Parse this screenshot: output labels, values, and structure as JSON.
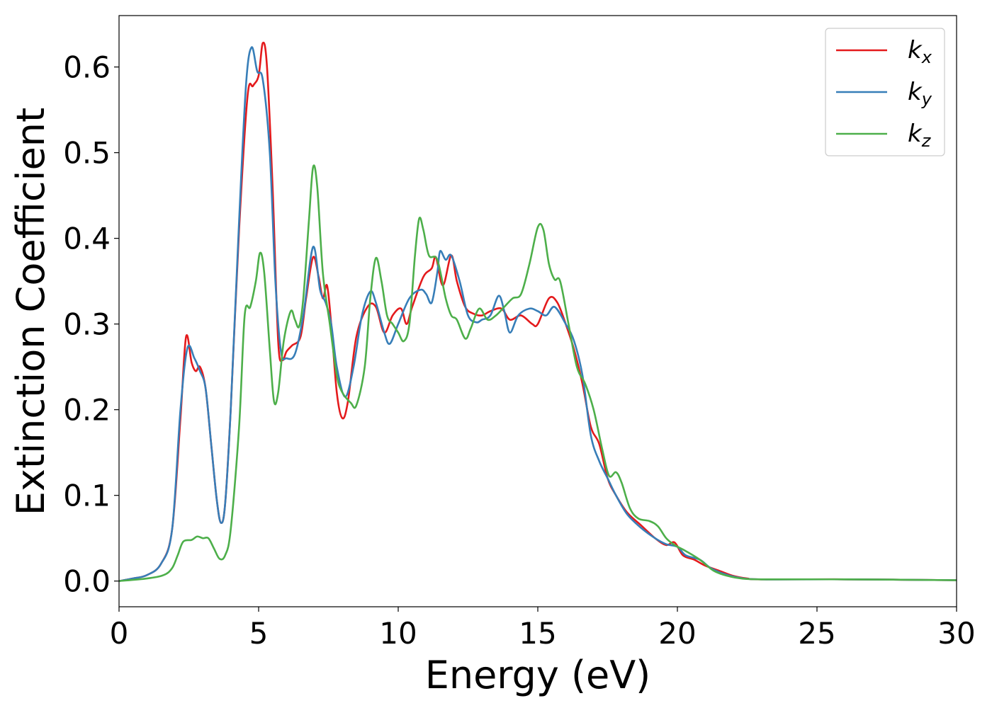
{
  "chart_data": {
    "type": "line",
    "xlabel": "Energy (eV)",
    "ylabel": "Extinction Coefficient",
    "xlim": [
      0,
      30
    ],
    "ylim": [
      -0.03,
      0.66
    ],
    "xticks": [
      0,
      5,
      10,
      15,
      20,
      25,
      30
    ],
    "xtick_labels": [
      "0",
      "5",
      "10",
      "15",
      "20",
      "25",
      "30"
    ],
    "yticks": [
      0.0,
      0.1,
      0.2,
      0.3,
      0.4,
      0.5,
      0.6
    ],
    "ytick_labels": [
      "0.0",
      "0.1",
      "0.2",
      "0.3",
      "0.4",
      "0.5",
      "0.6"
    ],
    "grid": false,
    "legend_position": "top-right",
    "series": [
      {
        "name": "kx",
        "legend_base": "k",
        "legend_sub": "x",
        "color": "#e41a1c",
        "points": [
          [
            0,
            0.0
          ],
          [
            0.5,
            0.003
          ],
          [
            1.0,
            0.007
          ],
          [
            1.5,
            0.02
          ],
          [
            1.9,
            0.06
          ],
          [
            2.2,
            0.19
          ],
          [
            2.4,
            0.285
          ],
          [
            2.6,
            0.255
          ],
          [
            2.75,
            0.245
          ],
          [
            2.9,
            0.25
          ],
          [
            3.1,
            0.225
          ],
          [
            3.3,
            0.16
          ],
          [
            3.5,
            0.095
          ],
          [
            3.65,
            0.068
          ],
          [
            3.8,
            0.09
          ],
          [
            4.0,
            0.2
          ],
          [
            4.3,
            0.41
          ],
          [
            4.6,
            0.565
          ],
          [
            4.8,
            0.578
          ],
          [
            5.0,
            0.59
          ],
          [
            5.15,
            0.628
          ],
          [
            5.3,
            0.6
          ],
          [
            5.5,
            0.46
          ],
          [
            5.7,
            0.28
          ],
          [
            5.85,
            0.258
          ],
          [
            6.0,
            0.268
          ],
          [
            6.2,
            0.275
          ],
          [
            6.5,
            0.285
          ],
          [
            6.7,
            0.33
          ],
          [
            6.95,
            0.378
          ],
          [
            7.15,
            0.355
          ],
          [
            7.3,
            0.33
          ],
          [
            7.45,
            0.345
          ],
          [
            7.6,
            0.3
          ],
          [
            7.8,
            0.22
          ],
          [
            8.0,
            0.19
          ],
          [
            8.2,
            0.21
          ],
          [
            8.5,
            0.285
          ],
          [
            8.9,
            0.32
          ],
          [
            9.2,
            0.32
          ],
          [
            9.5,
            0.29
          ],
          [
            9.8,
            0.31
          ],
          [
            10.1,
            0.318
          ],
          [
            10.3,
            0.3
          ],
          [
            10.5,
            0.32
          ],
          [
            10.9,
            0.355
          ],
          [
            11.2,
            0.365
          ],
          [
            11.35,
            0.378
          ],
          [
            11.6,
            0.345
          ],
          [
            11.9,
            0.38
          ],
          [
            12.1,
            0.35
          ],
          [
            12.4,
            0.32
          ],
          [
            12.7,
            0.312
          ],
          [
            13.0,
            0.31
          ],
          [
            13.3,
            0.315
          ],
          [
            13.7,
            0.318
          ],
          [
            14.0,
            0.305
          ],
          [
            14.4,
            0.31
          ],
          [
            14.8,
            0.3
          ],
          [
            15.0,
            0.3
          ],
          [
            15.4,
            0.33
          ],
          [
            15.7,
            0.325
          ],
          [
            16.0,
            0.3
          ],
          [
            16.3,
            0.27
          ],
          [
            16.6,
            0.23
          ],
          [
            16.9,
            0.18
          ],
          [
            17.2,
            0.16
          ],
          [
            17.5,
            0.12
          ],
          [
            17.8,
            0.1
          ],
          [
            18.2,
            0.08
          ],
          [
            18.7,
            0.065
          ],
          [
            19.2,
            0.05
          ],
          [
            19.6,
            0.042
          ],
          [
            19.9,
            0.045
          ],
          [
            20.2,
            0.03
          ],
          [
            20.6,
            0.025
          ],
          [
            21.0,
            0.018
          ],
          [
            21.5,
            0.012
          ],
          [
            22.0,
            0.006
          ],
          [
            22.5,
            0.003
          ],
          [
            23.0,
            0.002
          ],
          [
            26.0,
            0.002
          ],
          [
            30.0,
            0.001
          ]
        ]
      },
      {
        "name": "ky",
        "legend_base": "k",
        "legend_sub": "y",
        "color": "#377eb8",
        "points": [
          [
            0,
            0.0
          ],
          [
            0.5,
            0.003
          ],
          [
            1.0,
            0.007
          ],
          [
            1.5,
            0.02
          ],
          [
            1.9,
            0.06
          ],
          [
            2.2,
            0.2
          ],
          [
            2.45,
            0.272
          ],
          [
            2.7,
            0.26
          ],
          [
            2.9,
            0.245
          ],
          [
            3.1,
            0.225
          ],
          [
            3.3,
            0.16
          ],
          [
            3.5,
            0.095
          ],
          [
            3.65,
            0.068
          ],
          [
            3.8,
            0.09
          ],
          [
            4.0,
            0.2
          ],
          [
            4.3,
            0.42
          ],
          [
            4.55,
            0.58
          ],
          [
            4.75,
            0.623
          ],
          [
            4.95,
            0.595
          ],
          [
            5.15,
            0.585
          ],
          [
            5.4,
            0.5
          ],
          [
            5.6,
            0.35
          ],
          [
            5.8,
            0.268
          ],
          [
            6.0,
            0.26
          ],
          [
            6.3,
            0.265
          ],
          [
            6.6,
            0.31
          ],
          [
            6.95,
            0.39
          ],
          [
            7.2,
            0.34
          ],
          [
            7.4,
            0.325
          ],
          [
            7.6,
            0.3
          ],
          [
            7.8,
            0.25
          ],
          [
            8.1,
            0.215
          ],
          [
            8.4,
            0.25
          ],
          [
            8.7,
            0.31
          ],
          [
            9.0,
            0.338
          ],
          [
            9.2,
            0.325
          ],
          [
            9.5,
            0.29
          ],
          [
            9.7,
            0.277
          ],
          [
            10.0,
            0.3
          ],
          [
            10.4,
            0.33
          ],
          [
            10.8,
            0.34
          ],
          [
            11.0,
            0.335
          ],
          [
            11.2,
            0.325
          ],
          [
            11.4,
            0.36
          ],
          [
            11.5,
            0.385
          ],
          [
            11.7,
            0.375
          ],
          [
            11.9,
            0.38
          ],
          [
            12.2,
            0.35
          ],
          [
            12.5,
            0.31
          ],
          [
            12.8,
            0.302
          ],
          [
            13.0,
            0.305
          ],
          [
            13.3,
            0.31
          ],
          [
            13.6,
            0.333
          ],
          [
            13.8,
            0.315
          ],
          [
            14.0,
            0.29
          ],
          [
            14.3,
            0.31
          ],
          [
            14.7,
            0.318
          ],
          [
            15.0,
            0.315
          ],
          [
            15.3,
            0.31
          ],
          [
            15.6,
            0.32
          ],
          [
            16.0,
            0.3
          ],
          [
            16.3,
            0.28
          ],
          [
            16.6,
            0.24
          ],
          [
            16.9,
            0.17
          ],
          [
            17.2,
            0.14
          ],
          [
            17.5,
            0.12
          ],
          [
            17.8,
            0.1
          ],
          [
            18.2,
            0.078
          ],
          [
            18.7,
            0.062
          ],
          [
            19.2,
            0.05
          ],
          [
            19.6,
            0.043
          ],
          [
            20.0,
            0.04
          ],
          [
            20.3,
            0.03
          ],
          [
            20.8,
            0.025
          ],
          [
            21.2,
            0.015
          ],
          [
            21.7,
            0.008
          ],
          [
            22.2,
            0.004
          ],
          [
            23.0,
            0.002
          ],
          [
            26.0,
            0.002
          ],
          [
            30.0,
            0.001
          ]
        ]
      },
      {
        "name": "kz",
        "legend_base": "k",
        "legend_sub": "z",
        "color": "#4daf4a",
        "points": [
          [
            0,
            0.0
          ],
          [
            1.0,
            0.003
          ],
          [
            1.6,
            0.007
          ],
          [
            1.9,
            0.015
          ],
          [
            2.1,
            0.03
          ],
          [
            2.3,
            0.046
          ],
          [
            2.6,
            0.048
          ],
          [
            2.8,
            0.052
          ],
          [
            3.0,
            0.05
          ],
          [
            3.2,
            0.05
          ],
          [
            3.4,
            0.038
          ],
          [
            3.6,
            0.026
          ],
          [
            3.8,
            0.03
          ],
          [
            4.0,
            0.06
          ],
          [
            4.3,
            0.18
          ],
          [
            4.5,
            0.31
          ],
          [
            4.7,
            0.32
          ],
          [
            4.9,
            0.35
          ],
          [
            5.05,
            0.383
          ],
          [
            5.2,
            0.36
          ],
          [
            5.4,
            0.27
          ],
          [
            5.55,
            0.21
          ],
          [
            5.7,
            0.22
          ],
          [
            5.9,
            0.28
          ],
          [
            6.15,
            0.315
          ],
          [
            6.3,
            0.305
          ],
          [
            6.45,
            0.297
          ],
          [
            6.6,
            0.33
          ],
          [
            6.8,
            0.42
          ],
          [
            6.95,
            0.483
          ],
          [
            7.1,
            0.46
          ],
          [
            7.3,
            0.36
          ],
          [
            7.55,
            0.3
          ],
          [
            7.8,
            0.24
          ],
          [
            8.0,
            0.22
          ],
          [
            8.3,
            0.208
          ],
          [
            8.5,
            0.205
          ],
          [
            8.8,
            0.25
          ],
          [
            9.0,
            0.33
          ],
          [
            9.2,
            0.377
          ],
          [
            9.4,
            0.35
          ],
          [
            9.6,
            0.31
          ],
          [
            9.8,
            0.3
          ],
          [
            10.0,
            0.29
          ],
          [
            10.2,
            0.28
          ],
          [
            10.4,
            0.3
          ],
          [
            10.6,
            0.38
          ],
          [
            10.75,
            0.423
          ],
          [
            10.9,
            0.41
          ],
          [
            11.1,
            0.38
          ],
          [
            11.4,
            0.375
          ],
          [
            11.7,
            0.33
          ],
          [
            11.9,
            0.31
          ],
          [
            12.1,
            0.305
          ],
          [
            12.4,
            0.283
          ],
          [
            12.6,
            0.295
          ],
          [
            12.9,
            0.318
          ],
          [
            13.2,
            0.305
          ],
          [
            13.5,
            0.31
          ],
          [
            13.8,
            0.32
          ],
          [
            14.1,
            0.33
          ],
          [
            14.4,
            0.335
          ],
          [
            14.7,
            0.37
          ],
          [
            15.0,
            0.413
          ],
          [
            15.2,
            0.41
          ],
          [
            15.4,
            0.37
          ],
          [
            15.6,
            0.352
          ],
          [
            15.8,
            0.35
          ],
          [
            16.1,
            0.3
          ],
          [
            16.4,
            0.25
          ],
          [
            16.7,
            0.23
          ],
          [
            17.0,
            0.2
          ],
          [
            17.3,
            0.155
          ],
          [
            17.55,
            0.123
          ],
          [
            17.8,
            0.127
          ],
          [
            18.0,
            0.115
          ],
          [
            18.3,
            0.085
          ],
          [
            18.6,
            0.073
          ],
          [
            19.0,
            0.07
          ],
          [
            19.3,
            0.064
          ],
          [
            19.6,
            0.05
          ],
          [
            19.9,
            0.042
          ],
          [
            20.3,
            0.035
          ],
          [
            20.8,
            0.025
          ],
          [
            21.3,
            0.012
          ],
          [
            21.8,
            0.006
          ],
          [
            22.3,
            0.003
          ],
          [
            23.0,
            0.002
          ],
          [
            26.0,
            0.002
          ],
          [
            30.0,
            0.001
          ]
        ]
      }
    ]
  }
}
